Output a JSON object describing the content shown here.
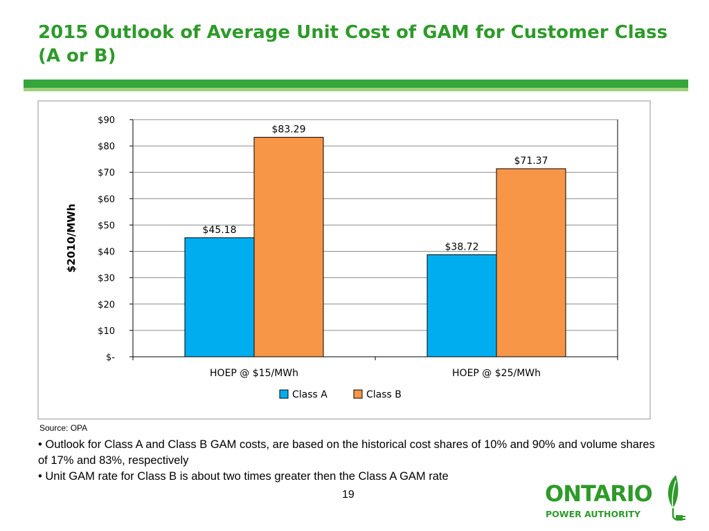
{
  "slide": {
    "title": "2015 Outlook of Average Unit Cost of GAM for Customer Class (A or B)",
    "source": "Source: OPA",
    "bullet_1": "Outlook for Class A and Class B GAM costs, are based on the historical cost shares of 10% and 90% and volume shares of 17% and 83%, respectively",
    "bullet_2": "• Unit GAM rate for Class B is about two times greater then the Class A GAM rate",
    "page_number": "19"
  },
  "logo": {
    "line1": "ONTARIO",
    "line2": "POWER AUTHORITY",
    "icon": "plug-leaf-icon"
  },
  "colors": {
    "title_green": "#2e9a2a",
    "class_a": "#00aeef",
    "class_b": "#f79646"
  },
  "chart_data": {
    "type": "bar",
    "categories": [
      "HOEP @ $15/MWh",
      "HOEP @ $25/MWh"
    ],
    "series": [
      {
        "name": "Class A",
        "values": [
          45.18,
          38.72
        ],
        "labels": [
          "$45.18",
          "$38.72"
        ]
      },
      {
        "name": "Class B",
        "values": [
          83.29,
          71.37
        ],
        "labels": [
          "$83.29",
          "$71.37"
        ]
      }
    ],
    "ylabel": "$2010/MWh",
    "xlabel": "",
    "ylim": [
      0,
      90
    ],
    "yticks": [
      0,
      10,
      20,
      30,
      40,
      50,
      60,
      70,
      80,
      90
    ],
    "ytick_labels": [
      "$-",
      "$10",
      "$20",
      "$30",
      "$40",
      "$50",
      "$60",
      "$70",
      "$80",
      "$90"
    ],
    "grid": true,
    "legend": "bottom"
  }
}
